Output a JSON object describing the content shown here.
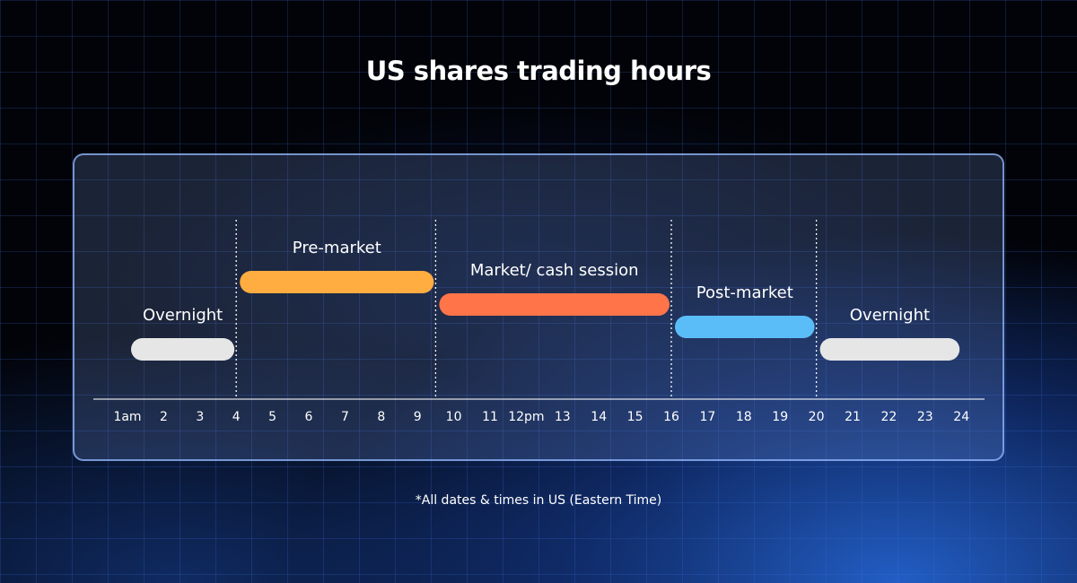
{
  "title": "US shares trading hours",
  "footnote": "*All dates & times in US (Eastern Time)",
  "chart_data": {
    "type": "bar",
    "orientation": "horizontal-range",
    "title": "US shares trading hours",
    "x_ticks": [
      "1am",
      "2",
      "3",
      "4",
      "5",
      "6",
      "7",
      "8",
      "9",
      "10",
      "11",
      "12pm",
      "13",
      "14",
      "15",
      "16",
      "17",
      "18",
      "19",
      "20",
      "21",
      "22",
      "23",
      "24"
    ],
    "xlim": [
      1,
      24
    ],
    "dividers": [
      4,
      9.5,
      16,
      20
    ],
    "sessions": [
      {
        "name": "Overnight",
        "start": 1,
        "end": 4,
        "color": "#e6e6e6",
        "level": 0
      },
      {
        "name": "Pre-market",
        "start": 4,
        "end": 9.5,
        "color": "#ffac40",
        "level": 3
      },
      {
        "name": "Market/ cash session",
        "start": 9.5,
        "end": 16,
        "color": "#ff7448",
        "level": 2
      },
      {
        "name": "Post-market",
        "start": 16,
        "end": 20,
        "color": "#5bbdf7",
        "level": 1
      },
      {
        "name": "Overnight",
        "start": 20,
        "end": 24,
        "color": "#e6e6e6",
        "level": 0
      }
    ]
  }
}
